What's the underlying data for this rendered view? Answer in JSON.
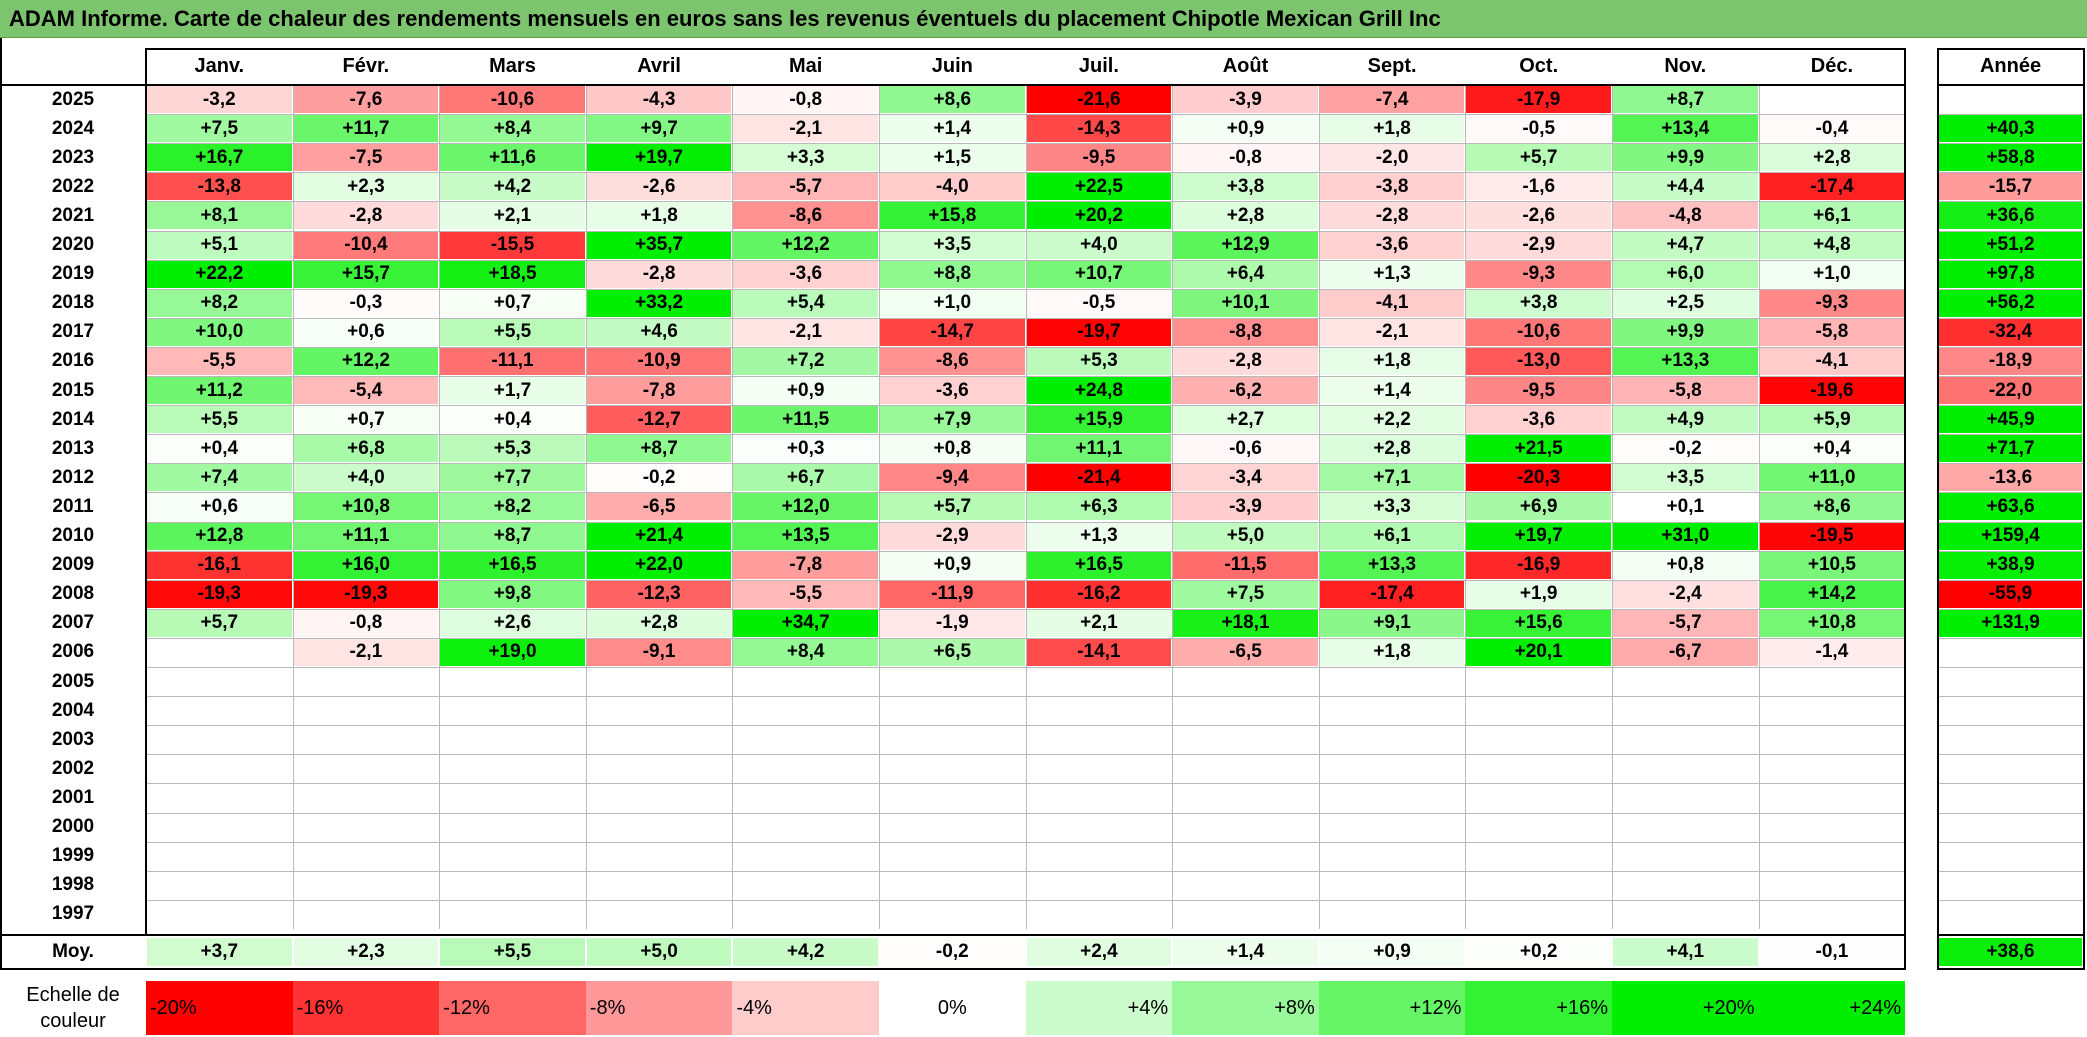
{
  "title": "ADAM Informe. Carte de chaleur des rendements mensuels en euros sans les revenus éventuels du placement Chipotle Mexican Grill Inc",
  "chart_data": {
    "type": "heatmap",
    "columns": [
      "Janv.",
      "Févr.",
      "Mars",
      "Avril",
      "Mai",
      "Juin",
      "Juil.",
      "Août",
      "Sept.",
      "Oct.",
      "Nov.",
      "Déc."
    ],
    "year_header": "Année",
    "rows": [
      {
        "year": "2025",
        "values": [
          "-3,2",
          "-7,6",
          "-10,6",
          "-4,3",
          "-0,8",
          "+8,6",
          "-21,6",
          "-3,9",
          "-7,4",
          "-17,9",
          "+8,7",
          ""
        ],
        "annual": ""
      },
      {
        "year": "2024",
        "values": [
          "+7,5",
          "+11,7",
          "+8,4",
          "+9,7",
          "-2,1",
          "+1,4",
          "-14,3",
          "+0,9",
          "+1,8",
          "-0,5",
          "+13,4",
          "-0,4"
        ],
        "annual": "+40,3"
      },
      {
        "year": "2023",
        "values": [
          "+16,7",
          "-7,5",
          "+11,6",
          "+19,7",
          "+3,3",
          "+1,5",
          "-9,5",
          "-0,8",
          "-2,0",
          "+5,7",
          "+9,9",
          "+2,8"
        ],
        "annual": "+58,8"
      },
      {
        "year": "2022",
        "values": [
          "-13,8",
          "+2,3",
          "+4,2",
          "-2,6",
          "-5,7",
          "-4,0",
          "+22,5",
          "+3,8",
          "-3,8",
          "-1,6",
          "+4,4",
          "-17,4"
        ],
        "annual": "-15,7"
      },
      {
        "year": "2021",
        "values": [
          "+8,1",
          "-2,8",
          "+2,1",
          "+1,8",
          "-8,6",
          "+15,8",
          "+20,2",
          "+2,8",
          "-2,8",
          "-2,6",
          "-4,8",
          "+6,1"
        ],
        "annual": "+36,6"
      },
      {
        "year": "2020",
        "values": [
          "+5,1",
          "-10,4",
          "-15,5",
          "+35,7",
          "+12,2",
          "+3,5",
          "+4,0",
          "+12,9",
          "-3,6",
          "-2,9",
          "+4,7",
          "+4,8"
        ],
        "annual": "+51,2"
      },
      {
        "year": "2019",
        "values": [
          "+22,2",
          "+15,7",
          "+18,5",
          "-2,8",
          "-3,6",
          "+8,8",
          "+10,7",
          "+6,4",
          "+1,3",
          "-9,3",
          "+6,0",
          "+1,0"
        ],
        "annual": "+97,8"
      },
      {
        "year": "2018",
        "values": [
          "+8,2",
          "-0,3",
          "+0,7",
          "+33,2",
          "+5,4",
          "+1,0",
          "-0,5",
          "+10,1",
          "-4,1",
          "+3,8",
          "+2,5",
          "-9,3"
        ],
        "annual": "+56,2"
      },
      {
        "year": "2017",
        "values": [
          "+10,0",
          "+0,6",
          "+5,5",
          "+4,6",
          "-2,1",
          "-14,7",
          "-19,7",
          "-8,8",
          "-2,1",
          "-10,6",
          "+9,9",
          "-5,8"
        ],
        "annual": "-32,4"
      },
      {
        "year": "2016",
        "values": [
          "-5,5",
          "+12,2",
          "-11,1",
          "-10,9",
          "+7,2",
          "-8,6",
          "+5,3",
          "-2,8",
          "+1,8",
          "-13,0",
          "+13,3",
          "-4,1"
        ],
        "annual": "-18,9"
      },
      {
        "year": "2015",
        "values": [
          "+11,2",
          "-5,4",
          "+1,7",
          "-7,8",
          "+0,9",
          "-3,6",
          "+24,8",
          "-6,2",
          "+1,4",
          "-9,5",
          "-5,8",
          "-19,6"
        ],
        "annual": "-22,0"
      },
      {
        "year": "2014",
        "values": [
          "+5,5",
          "+0,7",
          "+0,4",
          "-12,7",
          "+11,5",
          "+7,9",
          "+15,9",
          "+2,7",
          "+2,2",
          "-3,6",
          "+4,9",
          "+5,9"
        ],
        "annual": "+45,9"
      },
      {
        "year": "2013",
        "values": [
          "+0,4",
          "+6,8",
          "+5,3",
          "+8,7",
          "+0,3",
          "+0,8",
          "+11,1",
          "-0,6",
          "+2,8",
          "+21,5",
          "-0,2",
          "+0,4"
        ],
        "annual": "+71,7"
      },
      {
        "year": "2012",
        "values": [
          "+7,4",
          "+4,0",
          "+7,7",
          "-0,2",
          "+6,7",
          "-9,4",
          "-21,4",
          "-3,4",
          "+7,1",
          "-20,3",
          "+3,5",
          "+11,0"
        ],
        "annual": "-13,6"
      },
      {
        "year": "2011",
        "values": [
          "+0,6",
          "+10,8",
          "+8,2",
          "-6,5",
          "+12,0",
          "+5,7",
          "+6,3",
          "-3,9",
          "+3,3",
          "+6,9",
          "+0,1",
          "+8,6"
        ],
        "annual": "+63,6"
      },
      {
        "year": "2010",
        "values": [
          "+12,8",
          "+11,1",
          "+8,7",
          "+21,4",
          "+13,5",
          "-2,9",
          "+1,3",
          "+5,0",
          "+6,1",
          "+19,7",
          "+31,0",
          "-19,5"
        ],
        "annual": "+159,4"
      },
      {
        "year": "2009",
        "values": [
          "-16,1",
          "+16,0",
          "+16,5",
          "+22,0",
          "-7,8",
          "+0,9",
          "+16,5",
          "-11,5",
          "+13,3",
          "-16,9",
          "+0,8",
          "+10,5"
        ],
        "annual": "+38,9"
      },
      {
        "year": "2008",
        "values": [
          "-19,3",
          "-19,3",
          "+9,8",
          "-12,3",
          "-5,5",
          "-11,9",
          "-16,2",
          "+7,5",
          "-17,4",
          "+1,9",
          "-2,4",
          "+14,2"
        ],
        "annual": "-55,9"
      },
      {
        "year": "2007",
        "values": [
          "+5,7",
          "-0,8",
          "+2,6",
          "+2,8",
          "+34,7",
          "-1,9",
          "+2,1",
          "+18,1",
          "+9,1",
          "+15,6",
          "-5,7",
          "+10,8"
        ],
        "annual": "+131,9"
      },
      {
        "year": "2006",
        "values": [
          "",
          "-2,1",
          "+19,0",
          "-9,1",
          "+8,4",
          "+6,5",
          "-14,1",
          "-6,5",
          "+1,8",
          "+20,1",
          "-6,7",
          "-1,4"
        ],
        "annual": ""
      },
      {
        "year": "2005",
        "values": [
          "",
          "",
          "",
          "",
          "",
          "",
          "",
          "",
          "",
          "",
          "",
          ""
        ],
        "annual": ""
      },
      {
        "year": "2004",
        "values": [
          "",
          "",
          "",
          "",
          "",
          "",
          "",
          "",
          "",
          "",
          "",
          ""
        ],
        "annual": ""
      },
      {
        "year": "2003",
        "values": [
          "",
          "",
          "",
          "",
          "",
          "",
          "",
          "",
          "",
          "",
          "",
          ""
        ],
        "annual": ""
      },
      {
        "year": "2002",
        "values": [
          "",
          "",
          "",
          "",
          "",
          "",
          "",
          "",
          "",
          "",
          "",
          ""
        ],
        "annual": ""
      },
      {
        "year": "2001",
        "values": [
          "",
          "",
          "",
          "",
          "",
          "",
          "",
          "",
          "",
          "",
          "",
          ""
        ],
        "annual": ""
      },
      {
        "year": "2000",
        "values": [
          "",
          "",
          "",
          "",
          "",
          "",
          "",
          "",
          "",
          "",
          "",
          ""
        ],
        "annual": ""
      },
      {
        "year": "1999",
        "values": [
          "",
          "",
          "",
          "",
          "",
          "",
          "",
          "",
          "",
          "",
          "",
          ""
        ],
        "annual": ""
      },
      {
        "year": "1998",
        "values": [
          "",
          "",
          "",
          "",
          "",
          "",
          "",
          "",
          "",
          "",
          "",
          ""
        ],
        "annual": ""
      },
      {
        "year": "1997",
        "values": [
          "",
          "",
          "",
          "",
          "",
          "",
          "",
          "",
          "",
          "",
          "",
          ""
        ],
        "annual": ""
      }
    ],
    "average": {
      "label": "Moy.",
      "values": [
        "+3,7",
        "+2,3",
        "+5,5",
        "+5,0",
        "+4,2",
        "-0,2",
        "+2,4",
        "+1,4",
        "+0,9",
        "+0,2",
        "+4,1",
        "-0,1"
      ],
      "annual": "+38,6"
    },
    "legend": {
      "label": "Echelle de couleur",
      "stops": [
        "-20%",
        "-16%",
        "-12%",
        "-8%",
        "-4%",
        "0%",
        "+4%",
        "+8%",
        "+12%",
        "+16%",
        "+20%",
        "+24%"
      ]
    },
    "colors": {
      "negative_max": "#ff0000",
      "neutral": "#ffffff",
      "positive_max": "#00ee00",
      "title_bar": "#7dc46f"
    }
  }
}
